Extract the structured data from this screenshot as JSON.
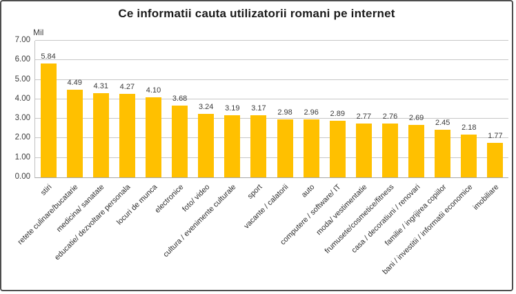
{
  "chart_data": {
    "type": "bar",
    "title": "Ce informatii cauta utilizatorii romani pe internet",
    "ylabel": "Mil",
    "xlabel": "",
    "ylim": [
      0,
      7
    ],
    "ytick_step": 1,
    "yticks": [
      "0.00",
      "1.00",
      "2.00",
      "3.00",
      "4.00",
      "5.00",
      "6.00",
      "7.00"
    ],
    "grid": true,
    "legend": false,
    "bar_color": "#FFC000",
    "gridline_color": "#C6C6C6",
    "categories": [
      "stiri",
      "retete culinare/bucatarie",
      "medicina/ sanatate",
      "educatie/ dezvoltare personala",
      "locuri de munca",
      "electronice",
      "foto/ video",
      "cultura / evenimente culturale",
      "sport",
      "vacante / calatorii",
      "auto",
      "computere / software/ IT",
      "moda/ vestimentatie",
      "frumusete/cosmetice/fitness",
      "casa / decoratiuni / renovari",
      "familie / ingrijirea copiilor",
      "bani / investitii / informatii economice",
      "imobiliare"
    ],
    "values": [
      5.84,
      4.49,
      4.31,
      4.27,
      4.1,
      3.68,
      3.24,
      3.19,
      3.17,
      2.98,
      2.96,
      2.89,
      2.77,
      2.76,
      2.69,
      2.45,
      2.18,
      1.77
    ],
    "value_labels": [
      "5.84",
      "4.49",
      "4.31",
      "4.27",
      "4.10",
      "3.68",
      "3.24",
      "3.19",
      "3.17",
      "2.98",
      "2.96",
      "2.89",
      "2.77",
      "2.76",
      "2.69",
      "2.45",
      "2.18",
      "1.77"
    ]
  }
}
